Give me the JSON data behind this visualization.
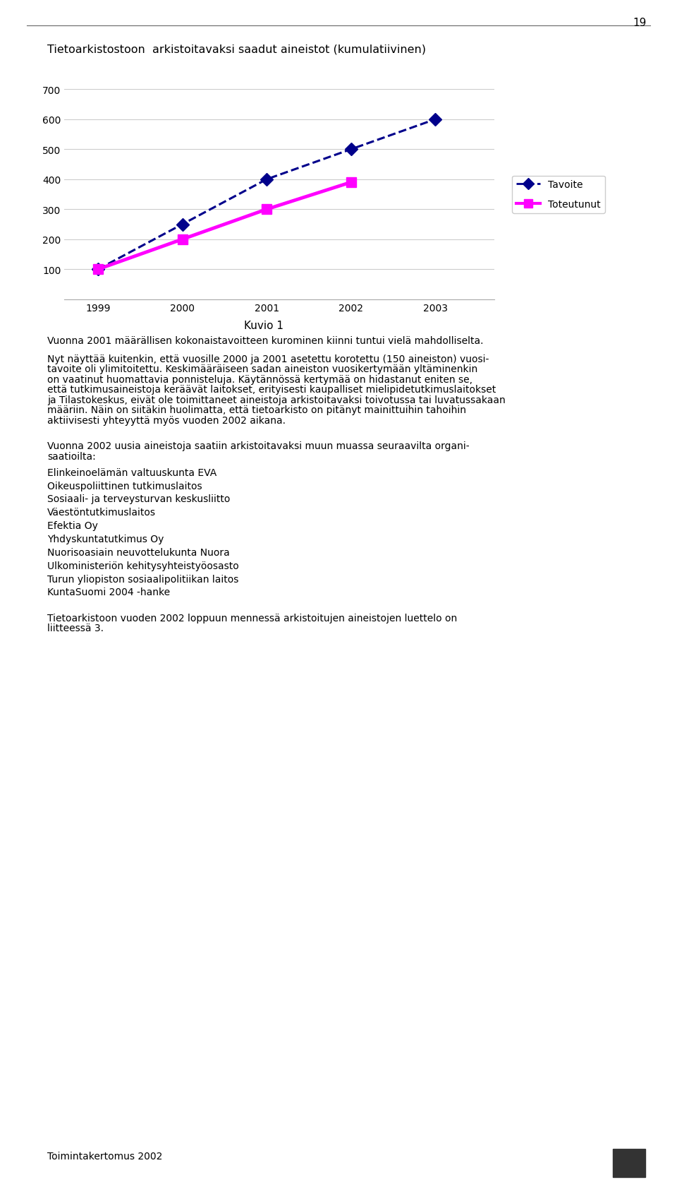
{
  "title": "Tietoarkistostoon  arkistoitavaksi saadut aineistot (kumulatiivinen)",
  "years": [
    1999,
    2000,
    2001,
    2002,
    2003
  ],
  "tavoite": [
    100,
    250,
    400,
    500,
    600
  ],
  "toteutunut": [
    100,
    200,
    300,
    390
  ],
  "toteutunut_years": [
    1999,
    2000,
    2001,
    2002
  ],
  "tavoite_color": "#00008B",
  "toteutunut_color": "#FF00FF",
  "ylim": [
    0,
    700
  ],
  "yticks": [
    0,
    100,
    200,
    300,
    400,
    500,
    600,
    700
  ],
  "xlim_min": 1998.6,
  "xlim_max": 2003.7,
  "legend_tavoite": "Tavoite",
  "legend_toteutunut": "Toteutunut",
  "kuvio_label": "Kuvio 1",
  "para1": "Vuonna 2001 määrällisen kokonaistavoitteen kurominen kiinni tuntui vielä mahdolliselta.",
  "para2_lines": [
    "Nyt näyttää kuitenkin, että vuosille 2000 ja 2001 asetettu korotettu (150 aineiston) vuosi-",
    "tavoite oli ylimitoitettu. Keskimääräiseen sadan aineiston vuosikertymään yltäminenkin",
    "on vaatinut huomattavia ponnisteluja. Käytännössä kertymää on hidastanut eniten se,",
    "että tutkimusaineistoja keräävät laitokset, erityisesti kaupalliset mielipidetutkimuslaitokset",
    "ja Tilastokeskus, eivät ole toimittaneet aineistoja arkistoitavaksi toivotussa tai luvatussakaan",
    "määriin. Näin on siitäkin huolimatta, että tietoarkisto on pitänyt mainittuihin tahoihin",
    "aktiivisesti yhteyyttä myös vuoden 2002 aikana."
  ],
  "para3_lines": [
    "Vuonna 2002 uusia aineistoja saatiin arkistoitavaksi muun muassa seuraavilta organi-",
    "saatioilta:"
  ],
  "org_list": [
    "Elinkeinoelämän valtuuskunta EVA",
    "Oikeuspoliittinen tutkimuslaitos",
    "Sosiaali- ja terveysturvan keskusliitto",
    "Väestöntutkimuslaitos",
    "Efektia Oy",
    "Yhdyskuntatutkimus Oy",
    "Nuorisoasiain neuvottelukunta Nuora",
    "Ulkoministeriön kehitysyhteistyöosasto",
    "Turun yliopiston sosiaalipolitiikan laitos",
    "KuntaSuomi 2004 -hanke"
  ],
  "para4_lines": [
    "Tietoarkistoon vuoden 2002 loppuun mennessä arkistoitujen aineistojen luettelo on",
    "liitteessä 3."
  ],
  "footer_text": "Toimintakertomus 2002",
  "page_number": "19",
  "footer_rect_color": "#333333"
}
